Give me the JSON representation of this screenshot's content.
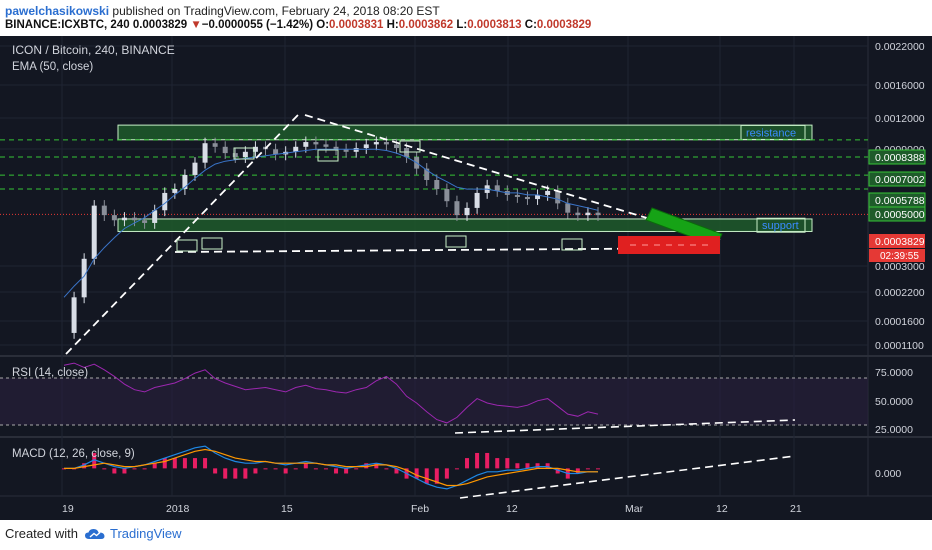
{
  "header": {
    "author": "pawelchasikowski",
    "published": "published on TradingView.com, February 24, 2018 08:20 EST",
    "symbol_interval": "BINANCE:ICXBTC, 240",
    "last": "0.0003829",
    "change_arrow": "▼",
    "change": "−0.0000055 (−1.42%)",
    "o_label": "O:",
    "o": "0.0003831",
    "h_label": "H:",
    "h": "0.0003862",
    "l_label": "L:",
    "l": "0.0003813",
    "c_label": "C:",
    "c": "0.0003829"
  },
  "footer": {
    "created_with": "Created with",
    "brand": "TradingView"
  },
  "colors": {
    "background": "#131722",
    "candle_up": "#d8dde6",
    "candle_down": "#8a8f99",
    "ema": "#3a74c8",
    "rsi": "#9c27b0",
    "macd_line": "#1e88e5",
    "signal_line": "#ff9800",
    "hist": "#e91e63",
    "zone_fill": "#1e5b2a",
    "zone_border": "#c8f0c8",
    "level_line": "#36c436",
    "trend_line": "#ffffff",
    "arrow_green": "#16a316",
    "arrow_red": "#e02020",
    "last_price_tag": "#e53935"
  },
  "chart_data": [
    {
      "type": "candlestick",
      "title": "ICON / Bitcoin, 240, BINANCE",
      "subtitle": "EMA (50, close)",
      "x_tick_labels": [
        "19",
        "2018",
        "15",
        "Feb",
        "12",
        "Mar",
        "12",
        "21"
      ],
      "y_tick_labels": [
        "0.0022000",
        "0.0016000",
        "0.0012000",
        "0.0009000",
        "0.0003000",
        "0.0002200",
        "0.0001600",
        "0.0001100"
      ],
      "yscale": "log",
      "ylim": [
        9e-05,
        0.0024
      ],
      "horizontal_levels": [
        {
          "value": "0.0008388"
        },
        {
          "value": "0.0007002"
        },
        {
          "value": "0.0005788"
        },
        {
          "value": "0.0005000"
        }
      ],
      "last_price_label": "0.0003829",
      "countdown_label": "02:39:55",
      "zones": [
        {
          "label": "resistance",
          "from": 0.00084,
          "to": 0.00098
        },
        {
          "label": "support",
          "from": 0.00032,
          "to": 0.000365
        }
      ],
      "close_series": [
        0.00011,
        0.00016,
        0.00024,
        0.00042,
        0.00038,
        0.00036,
        0.00037,
        0.00036,
        0.00035,
        0.0004,
        0.00048,
        0.0005,
        0.00058,
        0.00066,
        0.00081,
        0.00078,
        0.00073,
        0.0007,
        0.00074,
        0.00078,
        0.00076,
        0.00072,
        0.00074,
        0.00078,
        0.00082,
        0.0008,
        0.00078,
        0.00076,
        0.00074,
        0.00077,
        0.0008,
        0.00082,
        0.0008,
        0.00077,
        0.0007,
        0.00062,
        0.00055,
        0.0005,
        0.00044,
        0.00038,
        0.00041,
        0.00048,
        0.00052,
        0.00049,
        0.00047,
        0.00046,
        0.00045,
        0.00047,
        0.00049,
        0.00043,
        0.00039,
        0.00038,
        0.00039,
        0.00038
      ],
      "ema50": [
        0.00016,
        0.00018,
        0.0002,
        0.00024,
        0.00027,
        0.0003,
        0.00033,
        0.00035,
        0.00037,
        0.0004,
        0.00043,
        0.00047,
        0.00051,
        0.00056,
        0.00061,
        0.00065,
        0.00067,
        0.00068,
        0.00069,
        0.0007,
        0.00071,
        0.00072,
        0.00073,
        0.00074,
        0.00075,
        0.00076,
        0.00076,
        0.00076,
        0.00076,
        0.00076,
        0.00076,
        0.00076,
        0.00075,
        0.00073,
        0.0007,
        0.00066,
        0.00061,
        0.00057,
        0.00054,
        0.00051,
        0.0005,
        0.0005,
        0.0005,
        0.00049,
        0.00048,
        0.00048,
        0.00047,
        0.00047,
        0.00046,
        0.00045,
        0.00043,
        0.00042,
        0.00041,
        0.0004
      ]
    },
    {
      "type": "line",
      "title": "RSI (14, close)",
      "y_tick_labels": [
        "75.0000",
        "50.0000",
        "25.0000"
      ],
      "ylim": [
        20,
        85
      ],
      "bands": [
        70,
        30
      ],
      "rsi": [
        82,
        84,
        80,
        83,
        78,
        72,
        65,
        60,
        58,
        62,
        64,
        66,
        70,
        75,
        78,
        70,
        66,
        63,
        60,
        61,
        62,
        60,
        58,
        62,
        64,
        61,
        60,
        58,
        57,
        60,
        62,
        68,
        72,
        65,
        54,
        48,
        40,
        33,
        30,
        35,
        44,
        52,
        48,
        46,
        45,
        44,
        46,
        50,
        52,
        45,
        38,
        36,
        40,
        38
      ]
    },
    {
      "type": "line",
      "title": "MACD (12, 26, close, 9)",
      "y_tick_labels": [
        "0.000"
      ],
      "ylim": [
        -0.00015,
        0.00016
      ],
      "macd": [
        0,
        0,
        2e-05,
        5e-05,
        3e-05,
        1e-05,
        0,
        1e-05,
        2e-05,
        4e-05,
        6e-05,
        8e-05,
        0.0001,
        0.00012,
        0.00013,
        9e-05,
        6e-05,
        4e-05,
        3e-05,
        3e-05,
        4e-05,
        3e-05,
        2e-05,
        3e-05,
        4e-05,
        3e-05,
        2e-05,
        1e-05,
        0,
        1e-05,
        2e-05,
        3e-05,
        2e-05,
        0,
        -3e-05,
        -6e-05,
        -9e-05,
        -0.00011,
        -0.00012,
        -0.0001,
        -7e-05,
        -4e-05,
        -2e-05,
        -2e-05,
        -1e-05,
        -1e-05,
        0,
        1e-05,
        1e-05,
        -1e-05,
        -3e-05,
        -3e-05,
        -2e-05,
        -2e-05
      ],
      "signal": [
        0,
        0,
        1e-05,
        2e-05,
        3e-05,
        2e-05,
        1e-05,
        1e-05,
        2e-05,
        3e-05,
        4e-05,
        6e-05,
        8e-05,
        0.0001,
        0.00011,
        0.0001,
        8e-05,
        6e-05,
        5e-05,
        4e-05,
        4e-05,
        3e-05,
        3e-05,
        3e-05,
        3e-05,
        3e-05,
        2e-05,
        2e-05,
        1e-05,
        1e-05,
        1e-05,
        2e-05,
        2e-05,
        1e-05,
        -1e-05,
        -4e-05,
        -6e-05,
        -8e-05,
        -0.0001,
        -0.0001,
        -9e-05,
        -7e-05,
        -5e-05,
        -4e-05,
        -3e-05,
        -2e-05,
        -1e-05,
        0,
        0,
        0,
        -1e-05,
        -2e-05,
        -2e-05,
        -2e-05
      ]
    }
  ]
}
